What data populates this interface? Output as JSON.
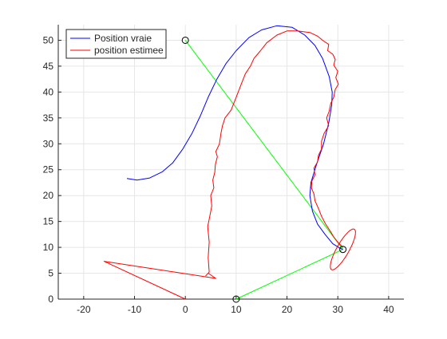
{
  "chart_data": {
    "type": "line",
    "xlim": [
      -25,
      43
    ],
    "ylim": [
      0,
      53
    ],
    "x_ticks": [
      -20,
      -10,
      0,
      10,
      20,
      30,
      40
    ],
    "y_ticks": [
      0,
      5,
      10,
      15,
      20,
      25,
      30,
      35,
      40,
      45,
      50
    ],
    "grid": true,
    "legend": {
      "placement": "top-left",
      "entries": [
        "Position vraie",
        "position estimee"
      ]
    },
    "colors": {
      "true_path": "#0000ff",
      "estimated_path": "#ff0000",
      "beams": "#00ff00",
      "markers": "#000000"
    },
    "series": [
      {
        "name": "Position vraie",
        "color": "#0000ff",
        "points": [
          [
            -11.5,
            23.3
          ],
          [
            -9.5,
            23.0
          ],
          [
            -7.0,
            23.4
          ],
          [
            -4.5,
            24.6
          ],
          [
            -2.5,
            26.3
          ],
          [
            -0.5,
            29.0
          ],
          [
            1.3,
            32.0
          ],
          [
            3.0,
            35.5
          ],
          [
            4.5,
            39.0
          ],
          [
            6.2,
            42.5
          ],
          [
            8.0,
            45.5
          ],
          [
            10.0,
            48.0
          ],
          [
            12.5,
            50.5
          ],
          [
            15.0,
            52.0
          ],
          [
            18.0,
            52.8
          ],
          [
            21.0,
            52.5
          ],
          [
            23.5,
            51.0
          ],
          [
            25.5,
            49.0
          ],
          [
            27.0,
            46.5
          ],
          [
            28.3,
            43.0
          ],
          [
            28.9,
            40.0
          ],
          [
            28.8,
            37.5
          ],
          [
            28.2,
            34.0
          ],
          [
            27.2,
            30.0
          ],
          [
            25.8,
            26.0
          ],
          [
            24.7,
            22.5
          ],
          [
            24.5,
            20.0
          ],
          [
            25.0,
            17.0
          ],
          [
            26.0,
            14.5
          ],
          [
            27.5,
            12.5
          ],
          [
            29.0,
            10.7
          ],
          [
            30.5,
            9.8
          ],
          [
            31.0,
            9.6
          ]
        ]
      },
      {
        "name": "position estimee",
        "color": "#ff0000",
        "points": [
          [
            0.0,
            0.0
          ],
          [
            -16.0,
            7.3
          ],
          [
            6.0,
            4.0
          ],
          [
            4.5,
            5.0
          ],
          [
            4.0,
            4.5
          ],
          [
            4.7,
            5.2
          ],
          [
            4.5,
            8.0
          ],
          [
            4.7,
            11.0
          ],
          [
            4.4,
            14.0
          ],
          [
            4.8,
            16.0
          ],
          [
            5.2,
            18.0
          ],
          [
            5.0,
            20.0
          ],
          [
            5.6,
            21.5
          ],
          [
            5.4,
            23.0
          ],
          [
            5.8,
            24.5
          ],
          [
            5.9,
            26.0
          ],
          [
            6.3,
            27.5
          ],
          [
            6.0,
            28.5
          ],
          [
            6.7,
            30.0
          ],
          [
            7.0,
            32.0
          ],
          [
            7.3,
            33.5
          ],
          [
            7.8,
            35.0
          ],
          [
            9.0,
            36.5
          ],
          [
            10.0,
            39.0
          ],
          [
            11.0,
            41.5
          ],
          [
            11.8,
            43.5
          ],
          [
            12.8,
            45.0
          ],
          [
            13.5,
            46.5
          ],
          [
            14.8,
            48.0
          ],
          [
            16.0,
            49.5
          ],
          [
            18.0,
            51.0
          ],
          [
            20.0,
            51.8
          ],
          [
            22.0,
            51.8
          ],
          [
            24.5,
            51.5
          ],
          [
            26.0,
            50.8
          ],
          [
            27.0,
            50.0
          ],
          [
            28.2,
            49.2
          ],
          [
            28.0,
            48.0
          ],
          [
            29.0,
            47.3
          ],
          [
            29.5,
            46.3
          ],
          [
            29.2,
            45.2
          ],
          [
            30.0,
            44.0
          ],
          [
            29.6,
            42.8
          ],
          [
            30.1,
            41.5
          ],
          [
            29.5,
            40.5
          ],
          [
            29.2,
            39.0
          ],
          [
            28.6,
            37.8
          ],
          [
            28.3,
            36.3
          ],
          [
            27.8,
            35.0
          ],
          [
            28.2,
            33.5
          ],
          [
            27.3,
            32.0
          ],
          [
            26.8,
            30.5
          ],
          [
            26.8,
            29.0
          ],
          [
            26.2,
            27.8
          ],
          [
            26.0,
            26.5
          ],
          [
            25.3,
            25.3
          ],
          [
            25.5,
            24.0
          ],
          [
            24.9,
            22.8
          ],
          [
            24.8,
            21.5
          ],
          [
            25.3,
            20.3
          ],
          [
            25.5,
            19.0
          ],
          [
            26.2,
            17.5
          ],
          [
            26.8,
            16.0
          ],
          [
            27.6,
            14.5
          ],
          [
            28.6,
            13.0
          ],
          [
            29.2,
            12.0
          ],
          [
            30.0,
            11.0
          ],
          [
            31.0,
            10.0
          ]
        ]
      }
    ],
    "beam_lines": [
      [
        [
          0.0,
          50.0
        ],
        [
          31.0,
          9.6
        ]
      ],
      [
        [
          10.0,
          0.0
        ],
        [
          31.0,
          9.6
        ]
      ]
    ],
    "beacons": [
      [
        0.0,
        50.0
      ],
      [
        10.0,
        0.0
      ],
      [
        31.0,
        9.6
      ]
    ],
    "ellipse": {
      "center": [
        31.0,
        9.6
      ],
      "semi_major": 4.5,
      "semi_minor": 1.2,
      "angle_deg": 60
    }
  }
}
